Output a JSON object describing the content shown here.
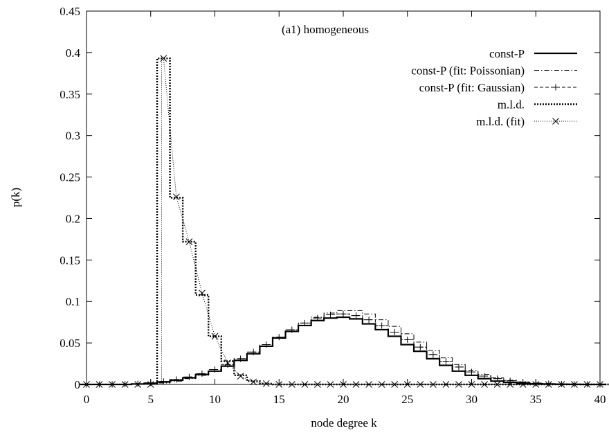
{
  "chart_data": {
    "type": "line",
    "title": "",
    "annotation": "(a1) homogeneous",
    "xlabel": "node degree k",
    "ylabel": "p(k)",
    "xlim": [
      0,
      40
    ],
    "ylim": [
      0,
      0.45
    ],
    "x_ticks": [
      0,
      5,
      10,
      15,
      20,
      25,
      30,
      35,
      40
    ],
    "x_tick_labels": [
      "0",
      "5",
      "10",
      "15",
      "20",
      "25",
      "30",
      "35",
      "40"
    ],
    "y_ticks": [
      0,
      0.05,
      0.1,
      0.15,
      0.2,
      0.25,
      0.3,
      0.35,
      0.4,
      0.45
    ],
    "y_tick_labels": [
      "0",
      "0.05",
      "0.1",
      "0.15",
      "0.2",
      "0.25",
      "0.3",
      "0.35",
      "0.4",
      "0.45"
    ],
    "grid": false,
    "legend_position": "top-right",
    "series": [
      {
        "name": "const-P",
        "style": "solid-step",
        "color": "#000000",
        "x": [
          0,
          1,
          2,
          3,
          4,
          5,
          6,
          7,
          8,
          9,
          10,
          11,
          12,
          13,
          14,
          15,
          16,
          17,
          18,
          19,
          20,
          21,
          22,
          23,
          24,
          25,
          26,
          27,
          28,
          29,
          30,
          31,
          32,
          33,
          34,
          35,
          36,
          37,
          38,
          39,
          40
        ],
        "values": [
          0,
          0,
          0,
          0,
          0.0005,
          0.0015,
          0.003,
          0.005,
          0.008,
          0.012,
          0.016,
          0.022,
          0.029,
          0.037,
          0.046,
          0.056,
          0.064,
          0.071,
          0.077,
          0.08,
          0.081,
          0.079,
          0.073,
          0.066,
          0.058,
          0.048,
          0.04,
          0.031,
          0.023,
          0.016,
          0.011,
          0.007,
          0.004,
          0.0025,
          0.0015,
          0.0008,
          0.0004,
          0.0002,
          0.0001,
          0,
          0
        ]
      },
      {
        "name": "const-P (fit: Poissonian)",
        "style": "dash-dot-step",
        "color": "#000000",
        "x": [
          0,
          1,
          2,
          3,
          4,
          5,
          6,
          7,
          8,
          9,
          10,
          11,
          12,
          13,
          14,
          15,
          16,
          17,
          18,
          19,
          20,
          21,
          22,
          23,
          24,
          25,
          26,
          27,
          28,
          29,
          30,
          31,
          32,
          33,
          34,
          35,
          36,
          37,
          38,
          39,
          40
        ],
        "values": [
          0,
          0,
          0,
          0,
          0.0002,
          0.0006,
          0.0017,
          0.004,
          0.007,
          0.011,
          0.016,
          0.022,
          0.029,
          0.037,
          0.046,
          0.056,
          0.066,
          0.074,
          0.081,
          0.086,
          0.089,
          0.089,
          0.085,
          0.078,
          0.07,
          0.061,
          0.051,
          0.041,
          0.032,
          0.024,
          0.017,
          0.012,
          0.008,
          0.005,
          0.003,
          0.0018,
          0.001,
          0.0005,
          0.0003,
          0.0001,
          0
        ]
      },
      {
        "name": "const-P (fit: Gaussian)",
        "style": "dashed-step-plus",
        "color": "#000000",
        "x": [
          0,
          1,
          2,
          3,
          4,
          5,
          6,
          7,
          8,
          9,
          10,
          11,
          12,
          13,
          14,
          15,
          16,
          17,
          18,
          19,
          20,
          21,
          22,
          23,
          24,
          25,
          26,
          27,
          28,
          29,
          30,
          31,
          32,
          33,
          34,
          35,
          36,
          37,
          38,
          39,
          40
        ],
        "values": [
          0,
          0,
          0,
          0.0003,
          0.0008,
          0.0018,
          0.0035,
          0.006,
          0.009,
          0.013,
          0.018,
          0.024,
          0.031,
          0.039,
          0.048,
          0.057,
          0.066,
          0.074,
          0.08,
          0.084,
          0.085,
          0.083,
          0.078,
          0.071,
          0.063,
          0.054,
          0.045,
          0.036,
          0.028,
          0.021,
          0.015,
          0.01,
          0.007,
          0.0045,
          0.0028,
          0.0016,
          0.0009,
          0.0005,
          0.0002,
          0.0001,
          0
        ]
      },
      {
        "name": "m.l.d.",
        "style": "dotted-step",
        "color": "#000000",
        "x": [
          5,
          6,
          7,
          8,
          9,
          10,
          11,
          12,
          13,
          14,
          15,
          16,
          17,
          18,
          19,
          20,
          21,
          22,
          23,
          24,
          25,
          26,
          27,
          28,
          29,
          30,
          31,
          32,
          33,
          34,
          35,
          36,
          37,
          38,
          39,
          40
        ],
        "values": [
          0.393,
          0.225,
          0.172,
          0.108,
          0.058,
          0.028,
          0.011,
          0.004,
          0.001,
          0,
          0,
          0,
          0,
          0,
          0,
          0,
          0,
          0,
          0,
          0,
          0,
          0,
          0,
          0,
          0,
          0,
          0,
          0,
          0,
          0,
          0,
          0,
          0,
          0,
          0,
          0
        ]
      },
      {
        "name": "m.l.d. (fit)",
        "style": "fine-dotted-x",
        "color": "#000000",
        "x": [
          0,
          1,
          2,
          3,
          4,
          5,
          6,
          7,
          8,
          9,
          10,
          11,
          12,
          13,
          14,
          15,
          16,
          17,
          18,
          19,
          20,
          21,
          22,
          23,
          24,
          25,
          26,
          27,
          28,
          29,
          30,
          31,
          32,
          33,
          34,
          35,
          36,
          37,
          38,
          39,
          40
        ],
        "values": [
          0,
          0,
          0,
          0,
          0,
          0,
          0.393,
          0.226,
          0.172,
          0.11,
          0.058,
          0.026,
          0.01,
          0.003,
          0.001,
          0,
          0,
          0,
          0,
          0,
          0,
          0,
          0,
          0,
          0,
          0,
          0,
          0,
          0,
          0,
          0,
          0,
          0,
          0,
          0,
          0,
          0,
          0,
          0,
          0,
          0
        ]
      }
    ]
  }
}
